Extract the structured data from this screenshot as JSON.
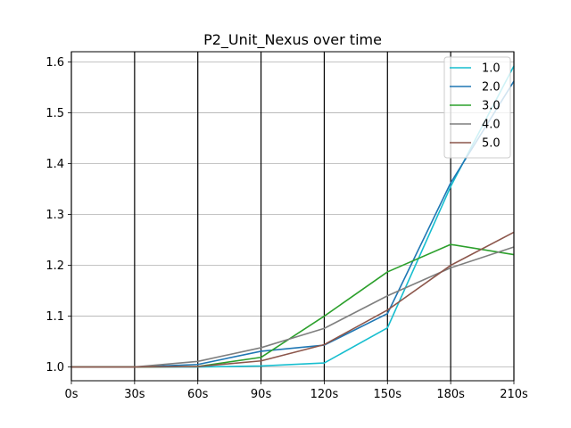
{
  "chart_data": {
    "type": "line",
    "title": "P2_Unit_Nexus over time",
    "xlabel": "",
    "ylabel": "",
    "x": [
      0,
      30,
      60,
      90,
      120,
      150,
      180,
      210
    ],
    "x_tick_labels": [
      "0s",
      "30s",
      "60s",
      "90s",
      "120s",
      "150s",
      "180s",
      "210s"
    ],
    "xlim": [
      0,
      210
    ],
    "ylim": [
      0.973,
      1.62
    ],
    "y_ticks": [
      1.0,
      1.1,
      1.2,
      1.3,
      1.4,
      1.5,
      1.6
    ],
    "y_tick_labels": [
      "1.0",
      "1.1",
      "1.2",
      "1.3",
      "1.4",
      "1.5",
      "1.6"
    ],
    "grid": {
      "horizontal": true,
      "vertical": true
    },
    "legend_position": "top-right",
    "series": [
      {
        "name": "1.0",
        "color": "#17becf",
        "values": [
          1.0,
          1.0,
          1.0,
          1.002,
          1.008,
          1.077,
          1.355,
          1.592
        ]
      },
      {
        "name": "2.0",
        "color": "#1f77b4",
        "values": [
          1.0,
          1.0,
          1.005,
          1.031,
          1.043,
          1.105,
          1.362,
          1.562
        ]
      },
      {
        "name": "3.0",
        "color": "#2ca02c",
        "values": [
          1.0,
          1.0,
          1.001,
          1.019,
          1.1,
          1.187,
          1.241,
          1.221
        ]
      },
      {
        "name": "4.0",
        "color": "#7f7f7f",
        "values": [
          1.0,
          1.0,
          1.011,
          1.038,
          1.076,
          1.14,
          1.195,
          1.236
        ]
      },
      {
        "name": "5.0",
        "color": "#8c564b",
        "values": [
          1.0,
          1.0,
          1.001,
          1.012,
          1.044,
          1.112,
          1.2,
          1.265
        ]
      }
    ]
  }
}
